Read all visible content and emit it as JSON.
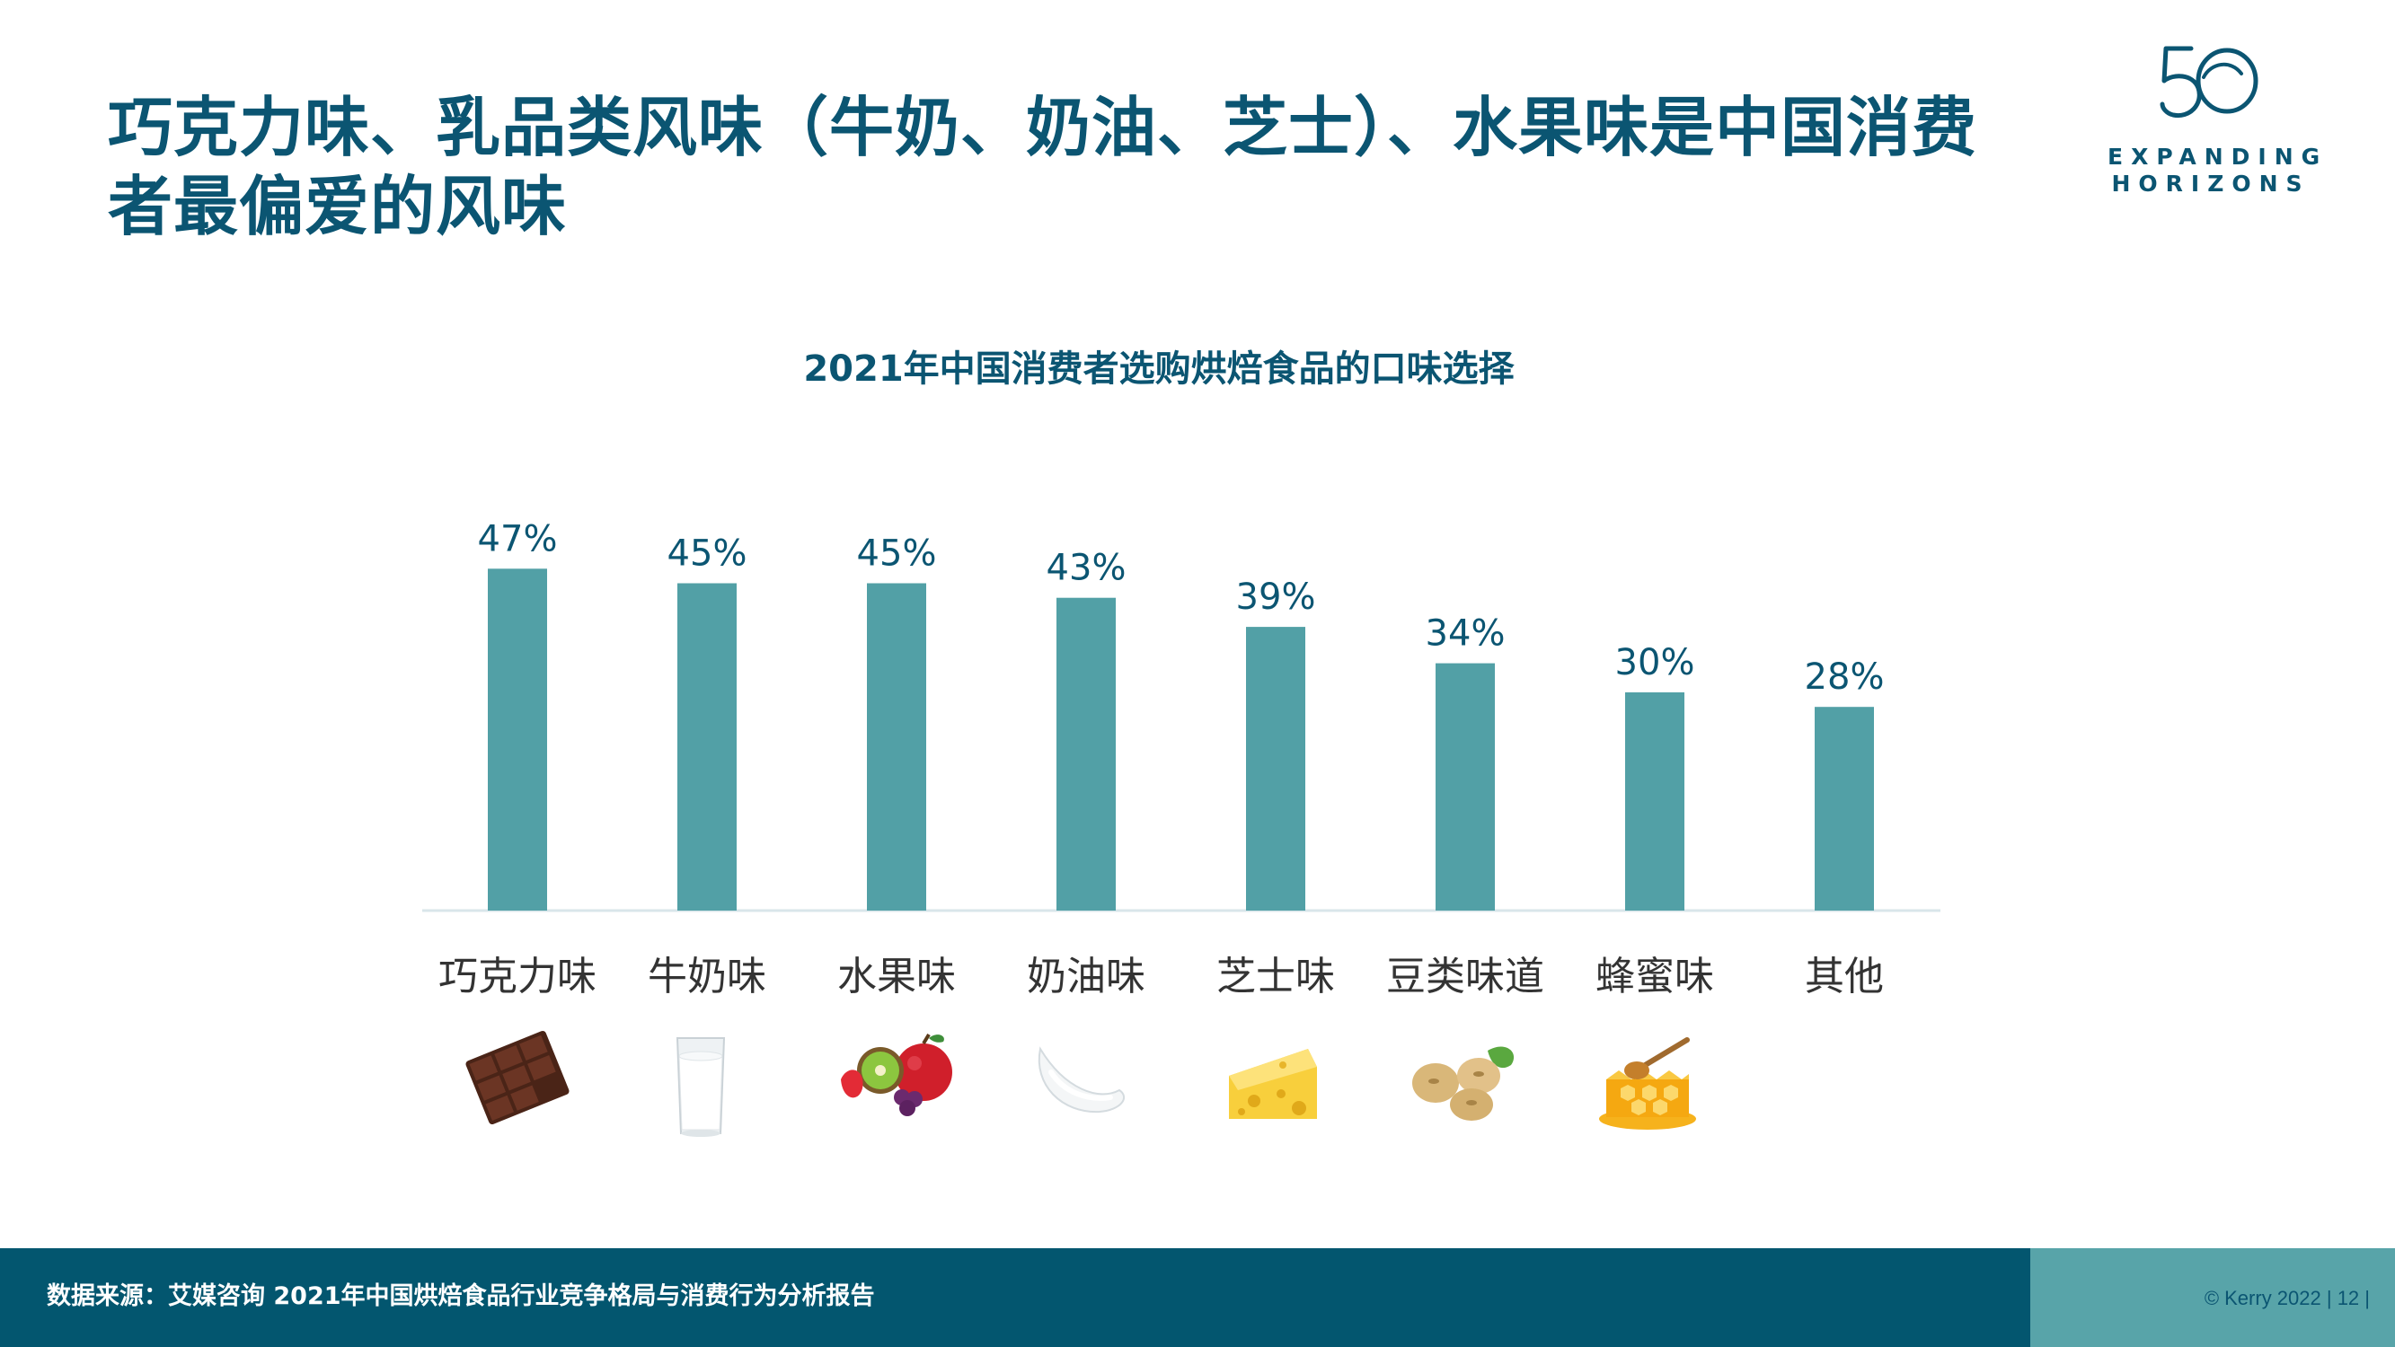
{
  "headline": "巧克力味、乳品类风味（牛奶、奶油、芝士）、水果味是中国消费者最偏爱的风味",
  "logo": {
    "number": "50",
    "line1": "EXPANDING",
    "line2": "HORIZONS"
  },
  "chart_data": {
    "type": "bar",
    "title": "2021年中国消费者选购烘焙食品的口味选择",
    "categories": [
      "巧克力味",
      "牛奶味",
      "水果味",
      "奶油味",
      "芝士味",
      "豆类味道",
      "蜂蜜味",
      "其他"
    ],
    "values": [
      47,
      45,
      45,
      43,
      39,
      34,
      30,
      28
    ],
    "value_labels": [
      "47%",
      "45%",
      "45%",
      "43%",
      "39%",
      "34%",
      "30%",
      "28%"
    ],
    "category_icons": [
      "chocolate-icon",
      "milk-glass-icon",
      "fruit-icon",
      "cream-icon",
      "cheese-icon",
      "soybean-icon",
      "honey-icon",
      ""
    ],
    "ylim": [
      0,
      50
    ],
    "xlabel": "",
    "ylabel": "",
    "grid": false,
    "legend": "none",
    "bar_color": "#52a0a6"
  },
  "footer": {
    "source": "数据来源：艾媒咨询 2021年中国烘焙食品行业竞争格局与消费行为分析报告",
    "copyright": "© Kerry 2022 | 12 |"
  },
  "colors": {
    "primary": "#0b5572",
    "bar": "#52a0a6",
    "footer": "#03566f",
    "footer_accent": "#58a4a9"
  }
}
